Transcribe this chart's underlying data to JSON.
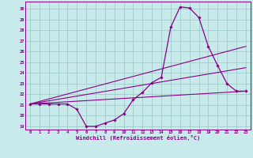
{
  "xlabel": "Windchill (Refroidissement éolien,°C)",
  "background_color": "#c8eaea",
  "grid_color": "#a0cccc",
  "line_color": "#880088",
  "xlim": [
    -0.5,
    23.5
  ],
  "ylim": [
    18.7,
    30.7
  ],
  "yticks": [
    19,
    20,
    21,
    22,
    23,
    24,
    25,
    26,
    27,
    28,
    29,
    30
  ],
  "xticks": [
    0,
    1,
    2,
    3,
    4,
    5,
    6,
    7,
    8,
    9,
    10,
    11,
    12,
    13,
    14,
    15,
    16,
    17,
    18,
    19,
    20,
    21,
    22,
    23
  ],
  "main_x": [
    0,
    1,
    2,
    3,
    4,
    5,
    6,
    7,
    8,
    9,
    10,
    11,
    12,
    13,
    14,
    15,
    16,
    17,
    18,
    19,
    20,
    21,
    22,
    23
  ],
  "main_y": [
    21.1,
    21.1,
    21.1,
    21.1,
    21.1,
    20.6,
    19.0,
    19.0,
    19.3,
    19.6,
    20.2,
    21.5,
    22.2,
    23.1,
    23.6,
    28.3,
    30.2,
    30.1,
    29.2,
    26.5,
    24.7,
    23.0,
    22.3,
    22.3
  ],
  "line1_x": [
    0,
    23
  ],
  "line1_y": [
    21.1,
    26.5
  ],
  "line2_x": [
    0,
    23
  ],
  "line2_y": [
    21.1,
    22.3
  ],
  "line3_x": [
    0,
    23
  ],
  "line3_y": [
    21.1,
    24.5
  ]
}
